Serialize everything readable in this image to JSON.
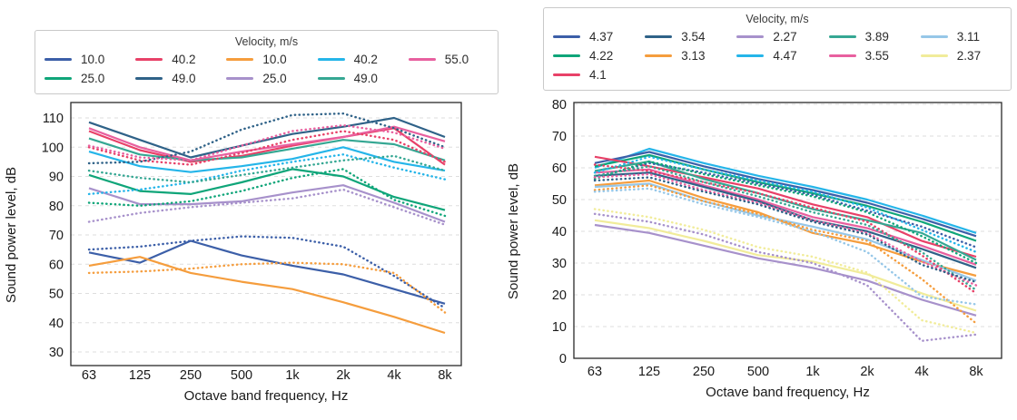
{
  "figure_title": "",
  "palette": {
    "blue": "#3c5fa8",
    "green": "#0fa579",
    "crimson": "#e84168",
    "steel": "#2f6288",
    "orange": "#f59d3d",
    "purple": "#a791cb",
    "cyan": "#25b5e9",
    "teal": "#35a793",
    "pink": "#e8609f",
    "lightblue": "#96c7e8",
    "yellow": "#f1ec9a"
  },
  "chart_data": [
    {
      "type": "line",
      "xlabel": "Octave band frequency, Hz",
      "ylabel": "Sound power level, dB",
      "categories": [
        "63",
        "125",
        "250",
        "500",
        "1k",
        "2k",
        "4k",
        "8k"
      ],
      "yticks": [
        30,
        40,
        50,
        60,
        70,
        80,
        90,
        100,
        110
      ],
      "ylim": [
        30,
        110
      ],
      "legend": {
        "title": "Velocity, m/s",
        "entries": [
          {
            "label": "10.0",
            "color": "blue"
          },
          {
            "label": "25.0",
            "color": "green"
          },
          {
            "label": "40.2",
            "color": "crimson"
          },
          {
            "label": "49.0",
            "color": "steel"
          },
          {
            "label": "10.0",
            "color": "orange"
          },
          {
            "label": "25.0",
            "color": "purple"
          },
          {
            "label": "40.2",
            "color": "cyan"
          },
          {
            "label": "49.0",
            "color": "teal"
          },
          {
            "label": "55.0",
            "color": "pink"
          }
        ]
      },
      "series": [
        {
          "label": "10.0",
          "color": "blue",
          "style": "solid",
          "values": [
            64,
            60.5,
            68,
            63,
            59.5,
            56.5,
            51.5,
            46.5
          ]
        },
        {
          "label": "25.0",
          "color": "green",
          "style": "solid",
          "values": [
            90.5,
            85,
            84,
            88,
            92.5,
            90,
            83,
            78.5
          ]
        },
        {
          "label": "40.2",
          "color": "crimson",
          "style": "solid",
          "values": [
            105.5,
            99,
            95,
            97,
            100.5,
            103.5,
            106.5,
            94
          ]
        },
        {
          "label": "49.0",
          "color": "steel",
          "style": "solid",
          "values": [
            108.5,
            102.5,
            96.5,
            100.5,
            104.5,
            107,
            110,
            103.5
          ]
        },
        {
          "label": "10.0",
          "color": "orange",
          "style": "solid",
          "values": [
            59.5,
            62.5,
            57,
            54,
            51.5,
            47,
            42,
            36.5
          ]
        },
        {
          "label": "25.0",
          "color": "purple",
          "style": "solid",
          "values": [
            86,
            80.5,
            80.5,
            81.5,
            84.5,
            87,
            81,
            74.5
          ]
        },
        {
          "label": "40.2",
          "color": "cyan",
          "style": "solid",
          "values": [
            98.5,
            93.5,
            91.5,
            93.5,
            96,
            100,
            95,
            92
          ]
        },
        {
          "label": "49.0",
          "color": "teal",
          "style": "solid",
          "values": [
            103,
            97.5,
            95.5,
            96.5,
            99.5,
            102.5,
            101,
            95.5
          ]
        },
        {
          "label": "55.0",
          "color": "pink",
          "style": "solid",
          "values": [
            106.5,
            100,
            95.5,
            98.5,
            101,
            103.5,
            107,
            102
          ]
        },
        {
          "label": "10.0",
          "color": "blue",
          "style": "dotted",
          "values": [
            65,
            66,
            68,
            69.5,
            69,
            66,
            56,
            45
          ]
        },
        {
          "label": "25.0",
          "color": "green",
          "style": "dotted",
          "values": [
            81,
            80,
            81.5,
            85,
            89.5,
            92.5,
            82,
            76.5
          ]
        },
        {
          "label": "40.2",
          "color": "crimson",
          "style": "dotted",
          "values": [
            100,
            95.5,
            94,
            98,
            102.5,
            105.5,
            102.5,
            95
          ]
        },
        {
          "label": "49.0",
          "color": "steel",
          "style": "dotted",
          "values": [
            94.5,
            95,
            98.5,
            106,
            111,
            111.5,
            106.5,
            100
          ]
        },
        {
          "label": "10.0",
          "color": "orange",
          "style": "dotted",
          "values": [
            57,
            57.5,
            58.5,
            60,
            60.5,
            60,
            57,
            43.5
          ]
        },
        {
          "label": "25.0",
          "color": "purple",
          "style": "dotted",
          "values": [
            74.5,
            77.5,
            79.5,
            81,
            82.5,
            85.5,
            79.5,
            73.5
          ]
        },
        {
          "label": "40.2",
          "color": "cyan",
          "style": "dotted",
          "values": [
            84,
            85.5,
            88,
            92,
            95,
            97.5,
            93,
            89
          ]
        },
        {
          "label": "49.0",
          "color": "teal",
          "style": "dotted",
          "values": [
            92,
            89.5,
            88,
            90.5,
            93,
            95.5,
            97,
            92
          ]
        },
        {
          "label": "55.0",
          "color": "pink",
          "style": "dotted",
          "values": [
            100.5,
            96.5,
            95.5,
            100.5,
            105.5,
            107.5,
            105,
            99.5
          ]
        }
      ]
    },
    {
      "type": "line",
      "xlabel": "Octave band frequency, Hz",
      "ylabel": "Sound power level, dB",
      "categories": [
        "63",
        "125",
        "250",
        "500",
        "1k",
        "2k",
        "4k",
        "8k"
      ],
      "yticks": [
        0,
        10,
        20,
        30,
        40,
        50,
        60,
        70,
        80
      ],
      "ylim": [
        0,
        80
      ],
      "legend": {
        "title": "Velocity, m/s",
        "entries": [
          {
            "label": "4.37",
            "color": "blue"
          },
          {
            "label": "4.22",
            "color": "green"
          },
          {
            "label": "4.1",
            "color": "crimson"
          },
          {
            "label": "3.54",
            "color": "steel"
          },
          {
            "label": "3.13",
            "color": "orange"
          },
          {
            "label": "2.27",
            "color": "purple"
          },
          {
            "label": "4.47",
            "color": "cyan"
          },
          {
            "label": "3.89",
            "color": "teal"
          },
          {
            "label": "3.55",
            "color": "pink"
          },
          {
            "label": "3.11",
            "color": "lightblue"
          },
          {
            "label": "2.37",
            "color": "yellow"
          }
        ]
      },
      "series": [
        {
          "label": "4.47",
          "color": "cyan",
          "style": "solid",
          "values": [
            60,
            66,
            61.5,
            57.5,
            54,
            50,
            45,
            39.5
          ]
        },
        {
          "label": "4.37",
          "color": "blue",
          "style": "solid",
          "values": [
            61.5,
            65,
            60.5,
            56.5,
            53,
            49,
            44,
            38.5
          ]
        },
        {
          "label": "4.22",
          "color": "green",
          "style": "solid",
          "values": [
            60.5,
            64,
            59.5,
            55.5,
            52,
            48,
            43,
            37
          ]
        },
        {
          "label": "4.1",
          "color": "crimson",
          "style": "solid",
          "values": [
            63.5,
            60.5,
            57,
            53.5,
            48.5,
            44.5,
            37,
            32
          ]
        },
        {
          "label": "3.89",
          "color": "teal",
          "style": "solid",
          "values": [
            59,
            62,
            56.5,
            52,
            47,
            43.5,
            39.5,
            31
          ]
        },
        {
          "label": "3.55",
          "color": "pink",
          "style": "solid",
          "values": [
            58.5,
            59.5,
            54.5,
            50,
            44.5,
            41,
            35.5,
            29.5
          ]
        },
        {
          "label": "3.54",
          "color": "steel",
          "style": "solid",
          "values": [
            57.5,
            58.5,
            54,
            49.5,
            43.5,
            40,
            34.5,
            28.5
          ]
        },
        {
          "label": "3.13",
          "color": "orange",
          "style": "solid",
          "values": [
            54.5,
            56,
            50.5,
            46,
            39.5,
            36,
            30.5,
            26
          ]
        },
        {
          "label": "3.11",
          "color": "lightblue",
          "style": "solid",
          "values": [
            54,
            55,
            49.5,
            45,
            41.5,
            37.5,
            31,
            24.5
          ]
        },
        {
          "label": "2.37",
          "color": "yellow",
          "style": "solid",
          "values": [
            43.5,
            41,
            37,
            32.5,
            30.5,
            26.5,
            20.5,
            15
          ]
        },
        {
          "label": "2.27",
          "color": "purple",
          "style": "solid",
          "values": [
            42,
            39.5,
            35.5,
            31.5,
            28.5,
            24.5,
            18.5,
            13.5
          ]
        },
        {
          "label": "4.47",
          "color": "cyan",
          "style": "dotted",
          "values": [
            58.5,
            63.5,
            59.5,
            56,
            52.5,
            47.5,
            40.5,
            33.5
          ]
        },
        {
          "label": "4.37",
          "color": "blue",
          "style": "dotted",
          "values": [
            57,
            61.5,
            58.5,
            55,
            51.5,
            46.5,
            41.5,
            35
          ]
        },
        {
          "label": "4.22",
          "color": "green",
          "style": "dotted",
          "values": [
            56.5,
            62,
            58,
            54.5,
            51,
            46,
            38.5,
            30
          ]
        },
        {
          "label": "4.1",
          "color": "crimson",
          "style": "dotted",
          "values": [
            61,
            59,
            55.5,
            52,
            47.5,
            43,
            32.5,
            20.5
          ]
        },
        {
          "label": "3.89",
          "color": "teal",
          "style": "dotted",
          "values": [
            57.5,
            60.5,
            55.5,
            51,
            46,
            42,
            33.5,
            21.5
          ]
        },
        {
          "label": "3.55",
          "color": "pink",
          "style": "dotted",
          "values": [
            57,
            58,
            53,
            49,
            43.5,
            39.5,
            30.5,
            23
          ]
        },
        {
          "label": "3.54",
          "color": "steel",
          "style": "dotted",
          "values": [
            56,
            57,
            52.5,
            48.5,
            43,
            39,
            29.5,
            24
          ]
        },
        {
          "label": "3.13",
          "color": "orange",
          "style": "dotted",
          "values": [
            53,
            54.5,
            49.5,
            45.5,
            40.5,
            37,
            25,
            11
          ]
        },
        {
          "label": "3.11",
          "color": "lightblue",
          "style": "dotted",
          "values": [
            52.5,
            53.5,
            48.5,
            44.5,
            40,
            33.5,
            19.5,
            17
          ]
        },
        {
          "label": "2.37",
          "color": "yellow",
          "style": "dotted",
          "values": [
            47,
            44.5,
            40.5,
            35,
            32,
            27,
            12,
            8
          ]
        },
        {
          "label": "2.27",
          "color": "purple",
          "style": "dotted",
          "values": [
            45.5,
            43,
            39,
            33.5,
            30,
            23,
            5.5,
            7.5
          ]
        }
      ]
    }
  ]
}
